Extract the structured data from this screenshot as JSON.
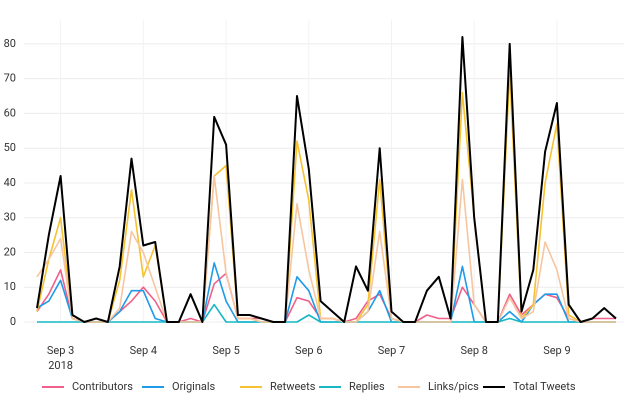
{
  "chart_data": {
    "type": "line",
    "categories": [
      null,
      null,
      "Sep 3",
      null,
      null,
      null,
      null,
      null,
      null,
      "Sep 4",
      null,
      null,
      null,
      null,
      null,
      null,
      "Sep 5",
      null,
      null,
      null,
      null,
      null,
      null,
      "Sep 6",
      null,
      null,
      null,
      null,
      null,
      null,
      "Sep 7",
      null,
      null,
      null,
      null,
      null,
      null,
      "Sep 8",
      null,
      null,
      null,
      null,
      null,
      null,
      "Sep 9",
      null,
      null,
      null,
      null,
      null
    ],
    "year_label": "2018",
    "ylim": [
      0,
      84
    ],
    "yticks": [
      0,
      10,
      20,
      30,
      40,
      50,
      60,
      70,
      80
    ],
    "grid": true,
    "legend": "bottom",
    "series": [
      {
        "name": "Contributors",
        "color": "#f0608a",
        "values": [
          3,
          8,
          15,
          1,
          0,
          0,
          0,
          3,
          6,
          10,
          6,
          0,
          0,
          1,
          0,
          11,
          14,
          1,
          1,
          1,
          0,
          0,
          7,
          6,
          1,
          1,
          0,
          1,
          6,
          8,
          1,
          0,
          0,
          2,
          1,
          1,
          10,
          5,
          0,
          0,
          8,
          2,
          5,
          8,
          7,
          1,
          0,
          1,
          1,
          1
        ]
      },
      {
        "name": "Originals",
        "color": "#1e9be9",
        "values": [
          4,
          6,
          12,
          1,
          0,
          0,
          0,
          3,
          9,
          9,
          1,
          0,
          0,
          0,
          0,
          17,
          6,
          0,
          0,
          0,
          0,
          0,
          13,
          9,
          0,
          0,
          0,
          0,
          3,
          9,
          0,
          0,
          0,
          0,
          0,
          0,
          16,
          0,
          0,
          0,
          3,
          0,
          5,
          8,
          8,
          0,
          0,
          0,
          0,
          0
        ]
      },
      {
        "name": "Retweets",
        "color": "#f5c230",
        "values": [
          3,
          18,
          30,
          1,
          0,
          0,
          0,
          12,
          38,
          13,
          22,
          0,
          0,
          0,
          0,
          42,
          45,
          1,
          1,
          0,
          0,
          0,
          52,
          35,
          1,
          1,
          0,
          0,
          5,
          41,
          1,
          0,
          0,
          0,
          0,
          0,
          66,
          30,
          0,
          0,
          72,
          1,
          5,
          40,
          57,
          2,
          0,
          0,
          0,
          0
        ]
      },
      {
        "name": "Replies",
        "color": "#17b8c4",
        "values": [
          0,
          0,
          0,
          0,
          0,
          0,
          0,
          0,
          0,
          0,
          0,
          0,
          0,
          0,
          0,
          5,
          0,
          0,
          0,
          0,
          0,
          0,
          0,
          2,
          0,
          0,
          0,
          0,
          0,
          0,
          0,
          0,
          0,
          0,
          0,
          0,
          0,
          0,
          0,
          0,
          1,
          0,
          0,
          0,
          0,
          0,
          0,
          0,
          0,
          0
        ]
      },
      {
        "name": "Links/pics",
        "color": "#f7c6a0",
        "values": [
          13,
          18,
          24,
          1,
          0,
          0,
          0,
          4,
          26,
          20,
          10,
          0,
          0,
          0,
          0,
          42,
          14,
          1,
          1,
          0,
          0,
          0,
          34,
          15,
          1,
          1,
          0,
          0,
          3,
          26,
          1,
          0,
          0,
          0,
          0,
          0,
          41,
          5,
          0,
          0,
          7,
          1,
          3,
          23,
          15,
          1,
          0,
          0,
          0,
          0
        ]
      },
      {
        "name": "Total Tweets",
        "color": "#000000",
        "values": [
          4,
          25,
          42,
          2,
          0,
          1,
          0,
          16,
          47,
          22,
          23,
          0,
          0,
          8,
          0,
          59,
          51,
          2,
          2,
          1,
          0,
          0,
          65,
          44,
          6,
          3,
          0,
          16,
          9,
          50,
          3,
          0,
          0,
          9,
          13,
          1,
          82,
          30,
          0,
          0,
          80,
          3,
          15,
          49,
          63,
          5,
          0,
          1,
          4,
          1
        ]
      }
    ]
  }
}
